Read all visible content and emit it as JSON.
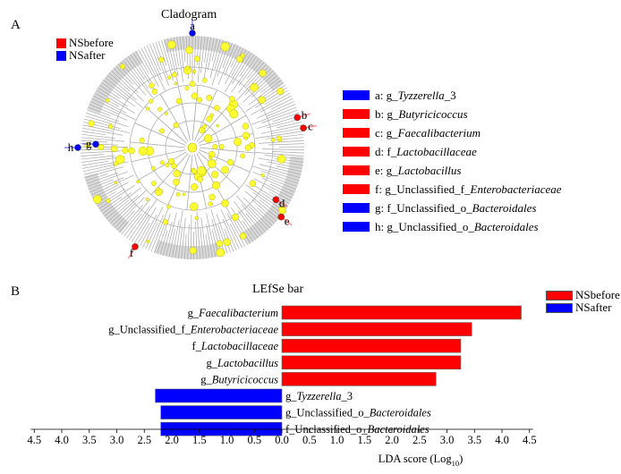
{
  "panel_a": {
    "letter": "A",
    "title": "Cladogram",
    "legend": [
      {
        "label": "NSbefore",
        "color": "#ff0000"
      },
      {
        "label": "NSafter",
        "color": "#0000ff"
      }
    ],
    "node_labels": [
      "a",
      "b",
      "c",
      "d",
      "e",
      "f",
      "g",
      "h"
    ],
    "key": [
      {
        "letter": "a",
        "prefix": "g_",
        "name": "Tyzzerella",
        "suffix": "_3",
        "color": "#0000ff"
      },
      {
        "letter": "b",
        "prefix": "g_",
        "name": "Butyricicoccus",
        "suffix": "",
        "color": "#ff0000"
      },
      {
        "letter": "c",
        "prefix": "g_",
        "name": "Faecalibacterium",
        "suffix": "",
        "color": "#ff0000"
      },
      {
        "letter": "d",
        "prefix": "f_",
        "name": "Lactobacillaceae",
        "suffix": "",
        "color": "#ff0000"
      },
      {
        "letter": "e",
        "prefix": "g_",
        "name": "Lactobacillus",
        "suffix": "",
        "color": "#ff0000"
      },
      {
        "letter": "f",
        "prefix": "g_Unclassified_f_",
        "name": "Enterobacteriaceae",
        "suffix": "",
        "color": "#ff0000"
      },
      {
        "letter": "g",
        "prefix": "f_Unclassified_o_",
        "name": "Bacteroidales",
        "suffix": "",
        "color": "#0000ff"
      },
      {
        "letter": "h",
        "prefix": "g_Unclassified_o_",
        "name": "Bacteroidales",
        "suffix": "",
        "color": "#0000ff"
      }
    ]
  },
  "panel_b": {
    "letter": "B",
    "title": "LEfSe bar",
    "legend": [
      {
        "label": "NSbefore",
        "color": "#ff0000"
      },
      {
        "label": "NSafter",
        "color": "#0000ff"
      }
    ]
  },
  "chart_data": {
    "type": "bar",
    "orientation": "horizontal",
    "title": "LEfSe bar",
    "xlabel_main": "LDA score (Log",
    "xlabel_sub": "10",
    "xlabel_end": ")",
    "xlim": [
      -4.5,
      4.5
    ],
    "x_ticks": [
      -4.5,
      -4.0,
      -3.5,
      -3.0,
      -2.5,
      -2.0,
      -1.5,
      -1.0,
      -0.5,
      0.0,
      0.5,
      1.0,
      1.5,
      2.0,
      2.5,
      3.0,
      3.5,
      4.0,
      4.5
    ],
    "tick_labels": [
      "4.5",
      "4.0",
      "3.5",
      "3.0",
      "2.5",
      "2.0",
      "1.5",
      "1.0",
      "0.5",
      "0.0",
      "0.5",
      "1.0",
      "1.5",
      "2.0",
      "2.5",
      "3.0",
      "3.5",
      "4.0",
      "4.5"
    ],
    "series": [
      {
        "name": "NSbefore",
        "color": "#ff0000"
      },
      {
        "name": "NSafter",
        "color": "#0000ff"
      }
    ],
    "bars": [
      {
        "prefix": "g_",
        "name": "Faecalibacterium",
        "suffix": "",
        "value": 4.35,
        "group": "NSbefore"
      },
      {
        "prefix": "g_Unclassified_f_",
        "name": "Enterobacteriaceae",
        "suffix": "",
        "value": 3.45,
        "group": "NSbefore"
      },
      {
        "prefix": "f_",
        "name": "Lactobacillaceae",
        "suffix": "",
        "value": 3.25,
        "group": "NSbefore"
      },
      {
        "prefix": "g_",
        "name": "Lactobacillus",
        "suffix": "",
        "value": 3.25,
        "group": "NSbefore"
      },
      {
        "prefix": "g_",
        "name": "Butyricicoccus",
        "suffix": "",
        "value": 2.8,
        "group": "NSbefore"
      },
      {
        "prefix": "g_",
        "name": "Tyzzerella",
        "suffix": "_3",
        "value": -2.3,
        "group": "NSafter"
      },
      {
        "prefix": "g_Unclassified_o_",
        "name": "Bacteroidales",
        "suffix": "",
        "value": -2.2,
        "group": "NSafter"
      },
      {
        "prefix": "f_Unclassified_o_",
        "name": "Bacteroidales",
        "suffix": "",
        "value": -2.2,
        "group": "NSafter"
      }
    ]
  }
}
